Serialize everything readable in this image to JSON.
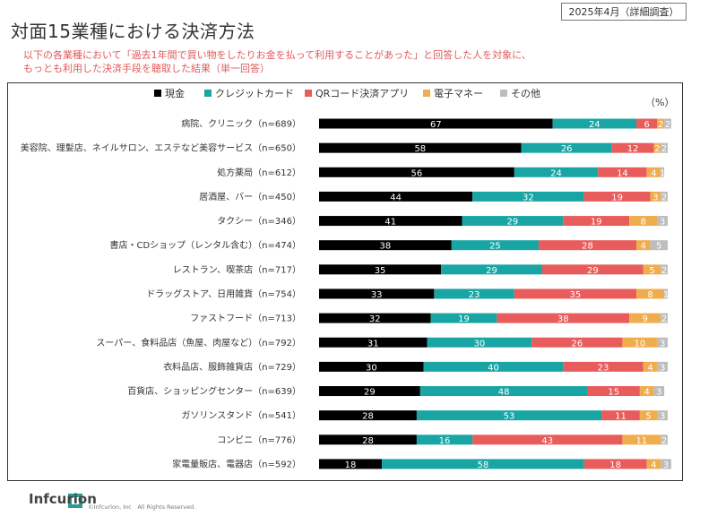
{
  "header": {
    "date_tag": "2025年4月（詳細調査）",
    "title": "対面15業種における決済方法",
    "subtitle_line1": "以下の各業種において「過去1年間で買い物をしたりお金を払って利用することがあった」と回答した人を対象に、",
    "subtitle_line2": "もっとも利用した決済手段を聴取した結果（単一回答）"
  },
  "footer": {
    "logo": "Infcurion",
    "copyright": "©Infcurion, Inc　All Rights Reserved."
  },
  "chart_data": {
    "type": "bar",
    "orientation": "horizontal",
    "stacked": true,
    "unit_label": "（%）",
    "legend_position": "top",
    "categories": [
      "病院、クリニック（n=689）",
      "美容院、理髪店、ネイルサロン、エステなど美容サービス（n=650）",
      "処方薬局（n=612）",
      "居酒屋、バー（n=450）",
      "タクシー（n=346）",
      "書店・CDショップ（レンタル含む）（n=474）",
      "レストラン、喫茶店（n=717）",
      "ドラッグストア、日用雑貨（n=754）",
      "ファストフード（n=713）",
      "スーパー、食料品店（魚屋、肉屋など）（n=792）",
      "衣料品店、服飾雑貨店（n=729）",
      "百貨店、ショッピングセンター（n=639）",
      "ガソリンスタンド（n=541）",
      "コンビニ（n=776）",
      "家電量販店、電器店（n=592）"
    ],
    "series": [
      {
        "name": "現金",
        "color": "#000000",
        "label_color": "#ffffff",
        "values": [
          67,
          58,
          56,
          44,
          41,
          38,
          35,
          33,
          32,
          31,
          30,
          29,
          28,
          28,
          18
        ]
      },
      {
        "name": "クレジットカード",
        "color": "#1aa5a5",
        "label_color": "#ffffff",
        "values": [
          24,
          26,
          24,
          32,
          29,
          25,
          29,
          23,
          19,
          30,
          40,
          48,
          53,
          16,
          58
        ]
      },
      {
        "name": "QRコード決済アプリ",
        "color": "#e85c5c",
        "label_color": "#ffffff",
        "values": [
          6,
          12,
          14,
          19,
          19,
          28,
          29,
          35,
          38,
          26,
          23,
          15,
          11,
          43,
          18
        ]
      },
      {
        "name": "電子マネー",
        "color": "#f0ad4e",
        "label_color": "#ffffff",
        "values": [
          2,
          2,
          4,
          3,
          8,
          4,
          5,
          8,
          9,
          10,
          4,
          4,
          5,
          11,
          4
        ]
      },
      {
        "name": "その他",
        "color": "#bdbdbd",
        "label_color": "#ffffff",
        "values": [
          2,
          2,
          1,
          2,
          3,
          5,
          2,
          1,
          2,
          3,
          3,
          3,
          3,
          2,
          3
        ]
      }
    ]
  }
}
